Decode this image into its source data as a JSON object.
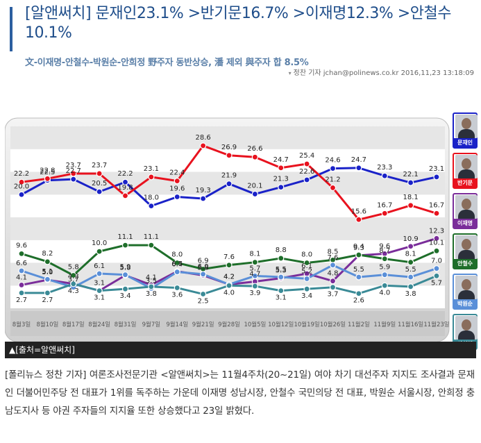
{
  "article": {
    "headline": "[알앤써치] 문재인23.1% >반기문16.7% >이재명12.3% >안철수 10.1%",
    "subhead": "文-이재명-안철수-박원순-안희정 野주자 동반상승, 潘 제외 與주자 합 8.5%",
    "byline": "정찬 기자 jchan@polinews.co.kr 2016,11,23 13:18:09",
    "caption": "▲[출처=알앤써치]",
    "body": "[폴리뉴스 정찬 기자] 여론조사전문기관 <알앤써치>는 11월4주차(20~21일) 여야 차기 대선주자 지지도 조사결과 문재인 더불어민주당 전 대표가 1위를 독주하는 가운데 이재명 성남시장, 안철수 국민의당 전 대표, 박원순 서울시장, 안희정 충남도지사 등 야권 주자들의 지지율 또한 상승했다고 23일 밝혔다."
  },
  "colors": {
    "moon": "#1a22c8",
    "ban": "#e8121e",
    "lee": "#7a2d9a",
    "ahn": "#1e6e2a",
    "park": "#5a8fd8",
    "ahnhj": "#3a8a96"
  },
  "chart_data": {
    "type": "line",
    "categories": [
      "8월3일",
      "8월10일",
      "8월17일",
      "8월24일",
      "8월31일",
      "9월7일",
      "9월14일",
      "9월21일",
      "9월28일",
      "10월5일",
      "10월12일",
      "10월19일",
      "10월26일",
      "11월2일",
      "11월9일",
      "11월16일",
      "11월23일"
    ],
    "series": [
      {
        "name": "문재인",
        "color": "#1a22c8",
        "values": [
          20.0,
          22.5,
          22.7,
          20.5,
          22.2,
          18.0,
          19.6,
          19.3,
          21.9,
          20.1,
          21.3,
          22.6,
          24.6,
          24.7,
          23.3,
          22.1,
          23.1
        ]
      },
      {
        "name": "반기문",
        "color": "#e8121e",
        "values": [
          22.2,
          22.8,
          23.7,
          23.7,
          19.8,
          23.1,
          22.4,
          28.6,
          26.9,
          26.6,
          24.7,
          25.4,
          21.2,
          15.6,
          16.7,
          18.1,
          16.7
        ]
      },
      {
        "name": "이재명",
        "color": "#7a2d9a",
        "values": [
          4.1,
          5.0,
          4.3,
          3.1,
          5.8,
          4.1,
          6.5,
          5.8,
          4.2,
          4.7,
          5.3,
          6.1,
          4.8,
          9.3,
          9.6,
          10.9,
          12.3
        ]
      },
      {
        "name": "안철수",
        "color": "#1e6e2a",
        "values": [
          9.6,
          8.2,
          5.8,
          10.0,
          11.1,
          11.1,
          8.0,
          6.9,
          7.6,
          8.1,
          8.8,
          8.0,
          8.5,
          9.4,
          8.7,
          8.1,
          10.1
        ]
      },
      {
        "name": "박원순",
        "color": "#5a8fd8",
        "values": [
          6.6,
          5.1,
          3.7,
          6.1,
          5.9,
          3.5,
          6.4,
          6.0,
          4.2,
          5.7,
          5.5,
          5.2,
          7.6,
          5.5,
          5.9,
          5.5,
          7.0
        ]
      },
      {
        "name": "안희정",
        "color": "#3a8a96",
        "values": [
          2.7,
          2.7,
          4.3,
          3.1,
          3.4,
          3.8,
          3.6,
          2.5,
          4.0,
          3.9,
          3.1,
          3.4,
          3.7,
          2.6,
          4.0,
          3.8,
          5.7
        ]
      }
    ],
    "legend": [
      "문재인",
      "반기문",
      "이재명",
      "안철수",
      "박원순",
      "안희정"
    ],
    "ylim": [
      0,
      32
    ],
    "grid": true,
    "legend_position": "right"
  }
}
